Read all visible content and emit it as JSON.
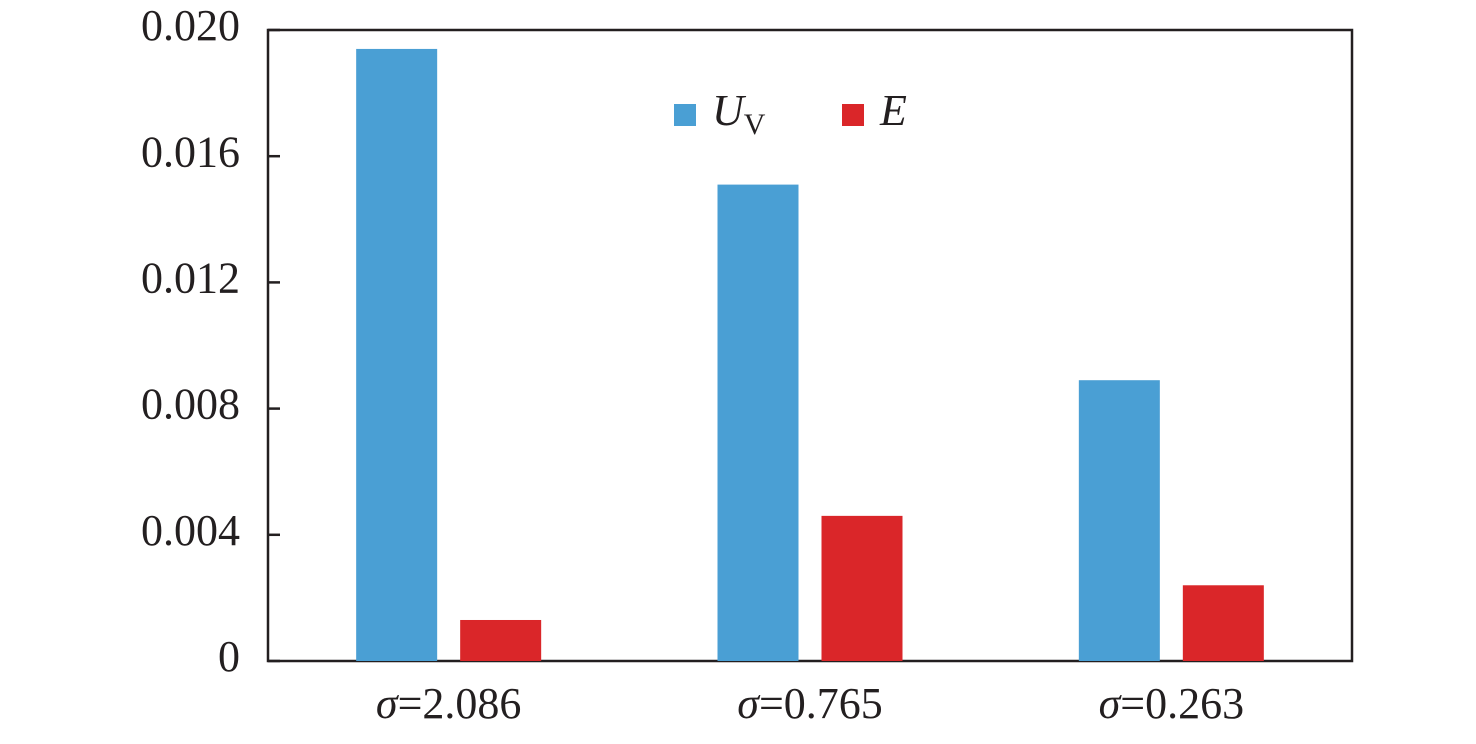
{
  "chart_data": {
    "type": "bar",
    "categories": [
      "σ=2.086",
      "σ=0.765",
      "σ=0.263"
    ],
    "series": [
      {
        "name": "UV",
        "color": "#4a9fd4",
        "values": [
          0.0194,
          0.0151,
          0.0089
        ]
      },
      {
        "name": "E",
        "color": "#da2629",
        "values": [
          0.0013,
          0.0046,
          0.0024
        ]
      }
    ],
    "ylim": [
      0,
      0.02
    ],
    "yticks": [
      0,
      0.004,
      0.008,
      0.012,
      0.016,
      {
        "value": 0.02,
        "label": "0.020"
      }
    ],
    "legend": "top-center"
  }
}
